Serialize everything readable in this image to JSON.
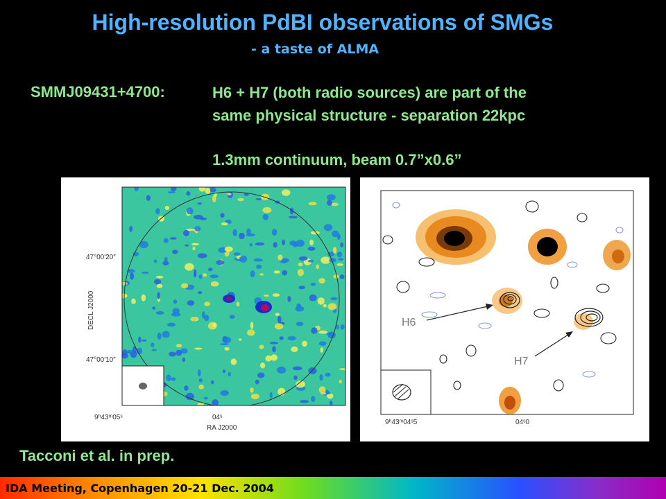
{
  "slide": {
    "title": "High-resolution PdBI observations of SMGs",
    "subtitle": "- a taste of ALMA",
    "object_label": "SMMJ09431+4700:",
    "description_line1": "H6 + H7 (both radio sources) are part of the",
    "description_line2": "same physical structure - separation 22kpc",
    "continuum_label": "1.3mm continuum, beam 0.7”x0.6”",
    "credit": "Tacconi et al. in prep.",
    "footer": "IDA Meeting, Copenhagen 20-21 Dec. 2004"
  },
  "left_map": {
    "dec_tick_top": "47°00′20″",
    "dec_tick_bottom": "47°00′10″",
    "dec_axis_label": "DECL J2000",
    "ra_tick_left": "9ʰ43ᵐ05ˢ",
    "ra_tick_right": "04ˢ",
    "ra_axis_label": "RA J2000"
  },
  "right_map": {
    "label_h6": "H6",
    "label_h7": "H7",
    "ra_tick_left": "9ʰ43ᵐ04ˢ5",
    "ra_tick_right": "04ˢ0"
  },
  "colors": {
    "title": "#4fb3ff",
    "text_green": "#8ee88e",
    "map_bg": "#3cc6a0"
  }
}
